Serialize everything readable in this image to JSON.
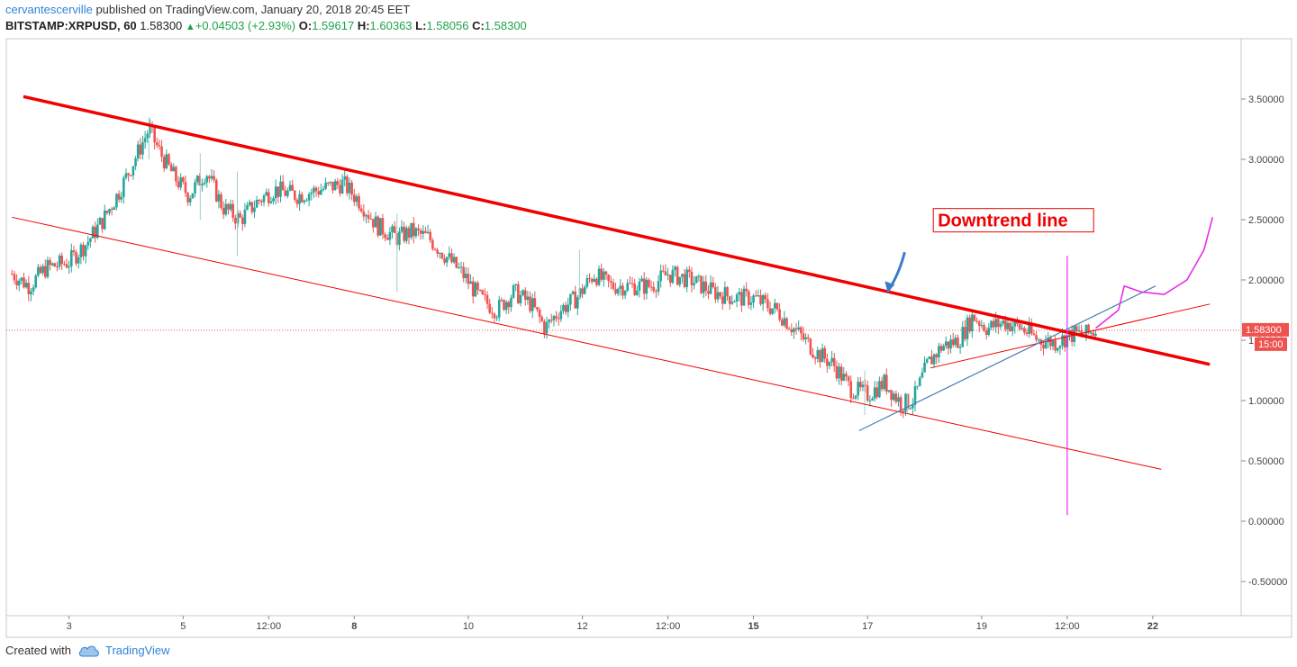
{
  "header": {
    "author": "cervantescerville",
    "published_text": "published on TradingView.com, January 20, 2018 20:45 EET",
    "symbol": "BITSTAMP:XRPUSD, 60",
    "last": "1.58300",
    "change": "+0.04503 (+2.93%)",
    "o_label": "O:",
    "o_value": "1.59617",
    "h_label": "H:",
    "h_value": "1.60363",
    "l_label": "L:",
    "l_value": "1.58056",
    "c_label": "C:",
    "c_value": "1.58300"
  },
  "footer": {
    "created_with": "Created with",
    "brand": "TradingView"
  },
  "colors": {
    "up": "#26a69a",
    "down": "#ef5350",
    "trend_red": "#f00000",
    "blue_line": "#4a7fb5",
    "magenta": "#e82ce8",
    "grid": "#e6e6e6",
    "axis_text": "#444444"
  },
  "chart_data": {
    "type": "candlestick",
    "timeframe": "60",
    "ylim": [
      -0.8,
      4.0
    ],
    "y_ticks": [
      {
        "value": 3.5,
        "label": "3.50000"
      },
      {
        "value": 3.0,
        "label": "3.00000"
      },
      {
        "value": 2.5,
        "label": "2.50000"
      },
      {
        "value": 2.0,
        "label": "2.00000"
      },
      {
        "value": 1.5,
        "label": "1.50000"
      },
      {
        "value": 1.0,
        "label": "1.00000"
      },
      {
        "value": 0.5,
        "label": "0.50000"
      },
      {
        "value": 0.0,
        "label": "0.00000"
      },
      {
        "value": -0.5,
        "label": "-0.50000"
      }
    ],
    "x_ticks": [
      {
        "t": 3.0,
        "label": "3",
        "bold": false
      },
      {
        "t": 5.0,
        "label": "5",
        "bold": false
      },
      {
        "t": 6.5,
        "label": "12:00",
        "bold": false
      },
      {
        "t": 8.0,
        "label": "8",
        "bold": true
      },
      {
        "t": 10.0,
        "label": "10",
        "bold": false
      },
      {
        "t": 12.0,
        "label": "12",
        "bold": false
      },
      {
        "t": 13.5,
        "label": "12:00",
        "bold": false
      },
      {
        "t": 15.0,
        "label": "15",
        "bold": true
      },
      {
        "t": 17.0,
        "label": "17",
        "bold": false
      },
      {
        "t": 19.0,
        "label": "19",
        "bold": false
      },
      {
        "t": 20.5,
        "label": "12:00",
        "bold": false
      },
      {
        "t": 22.0,
        "label": "22",
        "bold": true
      }
    ],
    "last_price": {
      "value": 1.583,
      "label": "1.58300",
      "countdown": "15:00"
    },
    "price_path": [
      [
        2.0,
        2.05
      ],
      [
        2.3,
        1.95
      ],
      [
        2.6,
        2.1
      ],
      [
        3.0,
        2.15
      ],
      [
        3.3,
        2.3
      ],
      [
        3.6,
        2.5
      ],
      [
        3.9,
        2.75
      ],
      [
        4.2,
        3.05
      ],
      [
        4.4,
        3.25
      ],
      [
        4.6,
        3.05
      ],
      [
        4.85,
        2.85
      ],
      [
        5.1,
        2.7
      ],
      [
        5.4,
        2.9
      ],
      [
        5.7,
        2.6
      ],
      [
        6.0,
        2.5
      ],
      [
        6.3,
        2.65
      ],
      [
        6.6,
        2.75
      ],
      [
        7.0,
        2.7
      ],
      [
        7.4,
        2.75
      ],
      [
        7.8,
        2.8
      ],
      [
        8.1,
        2.65
      ],
      [
        8.4,
        2.45
      ],
      [
        8.75,
        2.35
      ],
      [
        9.0,
        2.4
      ],
      [
        9.3,
        2.35
      ],
      [
        9.6,
        2.2
      ],
      [
        9.9,
        2.05
      ],
      [
        10.2,
        1.85
      ],
      [
        10.5,
        1.75
      ],
      [
        10.8,
        1.9
      ],
      [
        11.1,
        1.8
      ],
      [
        11.35,
        1.6
      ],
      [
        11.6,
        1.75
      ],
      [
        11.9,
        1.85
      ],
      [
        12.2,
        2.05
      ],
      [
        12.5,
        1.95
      ],
      [
        12.8,
        1.95
      ],
      [
        13.2,
        1.95
      ],
      [
        13.5,
        2.05
      ],
      [
        13.9,
        2.0
      ],
      [
        14.3,
        1.9
      ],
      [
        14.7,
        1.85
      ],
      [
        15.0,
        1.85
      ],
      [
        15.4,
        1.75
      ],
      [
        15.8,
        1.55
      ],
      [
        16.1,
        1.4
      ],
      [
        16.4,
        1.3
      ],
      [
        16.7,
        1.1
      ],
      [
        17.0,
        1.05
      ],
      [
        17.3,
        1.15
      ],
      [
        17.6,
        0.97
      ],
      [
        17.8,
        1.0
      ],
      [
        18.05,
        1.3
      ],
      [
        18.3,
        1.45
      ],
      [
        18.6,
        1.5
      ],
      [
        18.85,
        1.7
      ],
      [
        19.1,
        1.6
      ],
      [
        19.4,
        1.65
      ],
      [
        19.7,
        1.6
      ],
      [
        20.0,
        1.5
      ],
      [
        20.3,
        1.48
      ],
      [
        20.6,
        1.55
      ],
      [
        20.85,
        1.55
      ],
      [
        21.0,
        1.583
      ]
    ],
    "extra_spikes": [
      {
        "t": 4.4,
        "high": 3.35,
        "low": 3.0
      },
      {
        "t": 5.3,
        "high": 3.05,
        "low": 2.5
      },
      {
        "t": 5.95,
        "high": 2.9,
        "low": 2.2
      },
      {
        "t": 8.75,
        "high": 2.55,
        "low": 1.9
      },
      {
        "t": 11.95,
        "high": 2.25,
        "low": 1.85
      },
      {
        "t": 16.95,
        "high": 1.25,
        "low": 0.88
      },
      {
        "t": 17.7,
        "high": 1.05,
        "low": 0.9
      }
    ],
    "drawings": {
      "downtrend_line": [
        [
          2.2,
          3.52
        ],
        [
          23.0,
          1.3
        ]
      ],
      "lower_channel_line": [
        [
          2.0,
          2.52
        ],
        [
          22.15,
          0.43
        ]
      ],
      "blue_support_line": [
        [
          16.85,
          0.75
        ],
        [
          22.05,
          1.95
        ]
      ],
      "red_small_trendline": [
        [
          18.1,
          1.27
        ],
        [
          23.0,
          1.8
        ]
      ],
      "magenta_vertical": {
        "t": 20.5,
        "from": 2.2,
        "to": 0.05
      },
      "magenta_projection": [
        [
          21.0,
          1.6
        ],
        [
          21.4,
          1.75
        ],
        [
          21.5,
          1.95
        ],
        [
          21.8,
          1.9
        ],
        [
          22.2,
          1.88
        ],
        [
          22.6,
          2.0
        ],
        [
          22.9,
          2.25
        ],
        [
          23.05,
          2.52
        ]
      ],
      "blue_arrow": {
        "from": [
          17.65,
          2.23
        ],
        "to": [
          17.35,
          1.9
        ]
      }
    },
    "annotation": {
      "text": "Downtrend line",
      "t": 18.2,
      "y": 2.48
    }
  }
}
